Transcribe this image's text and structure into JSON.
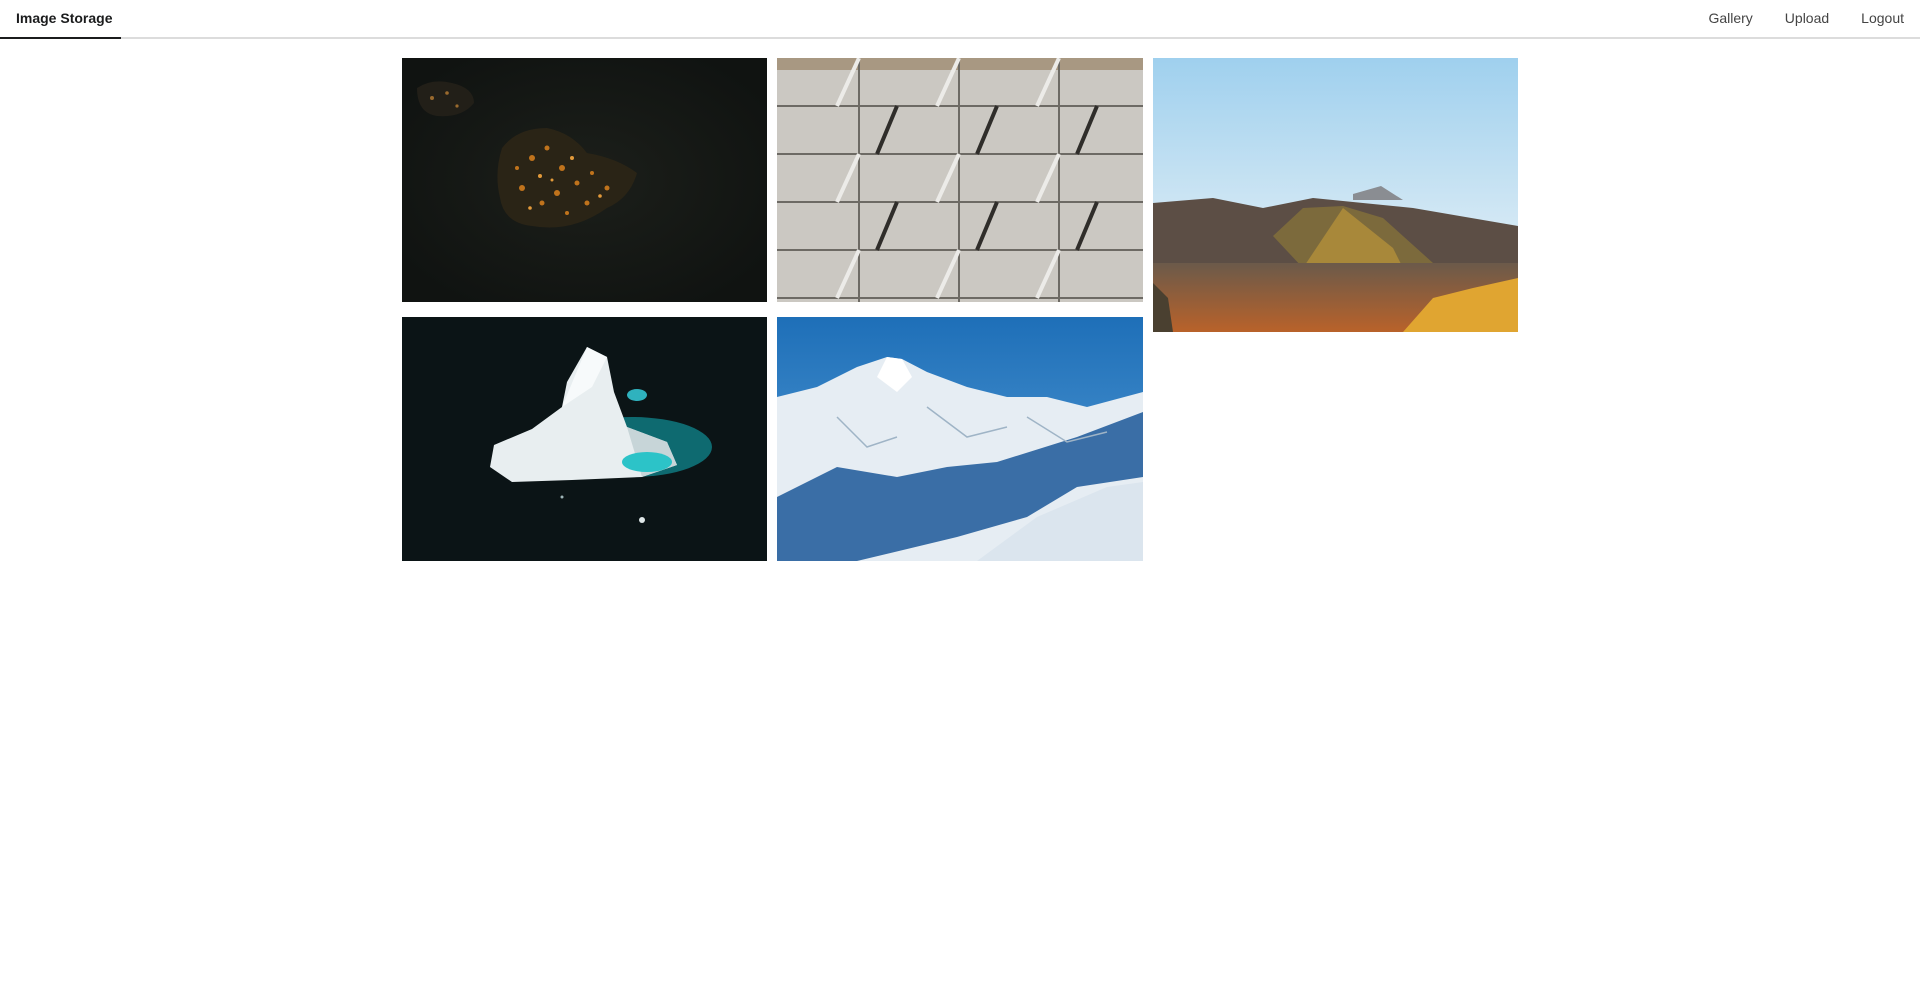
{
  "app": {
    "brand": "Image Storage"
  },
  "nav": {
    "gallery": "Gallery",
    "upload": "Upload",
    "logout": "Logout"
  },
  "gallery": {
    "images": [
      {
        "subject": "aerial-island-at-night"
      },
      {
        "subject": "concrete-tile-pattern"
      },
      {
        "subject": "volcanic-mountain-landscape"
      },
      {
        "subject": "aerial-iceberg"
      },
      {
        "subject": "snowy-mountain-range"
      }
    ]
  },
  "colors": {
    "brand_underline": "#1b1c1d",
    "topbar_border": "#dcdcdc",
    "nav_text": "#444444"
  }
}
